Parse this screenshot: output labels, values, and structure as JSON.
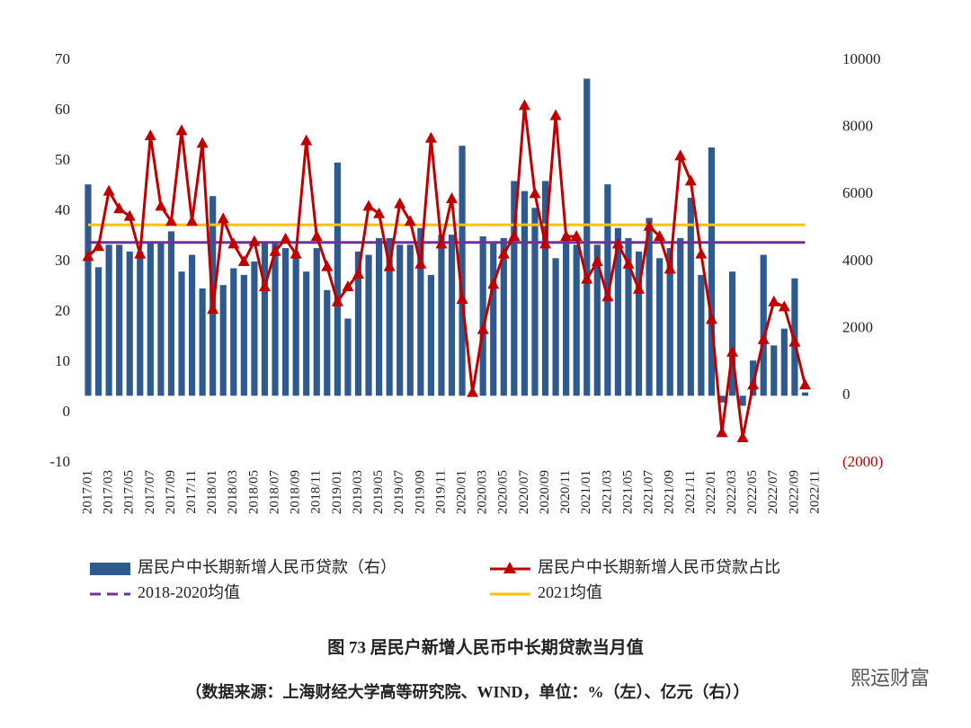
{
  "chart_data": {
    "type": "bar_line",
    "categories": [
      "2017/01",
      null,
      "2017/03",
      null,
      "2017/05",
      null,
      "2017/07",
      null,
      "2017/09",
      null,
      "2017/11",
      null,
      "2018/01",
      null,
      "2018/03",
      null,
      "2018/05",
      null,
      "2018/07",
      null,
      "2018/09",
      null,
      "2018/11",
      null,
      "2019/01",
      null,
      "2019/03",
      null,
      "2019/05",
      null,
      "2019/07",
      null,
      "2019/09",
      null,
      "2019/11",
      null,
      "2020/01",
      null,
      "2020/03",
      null,
      "2020/05",
      null,
      "2020/07",
      null,
      "2020/09",
      null,
      "2020/11",
      null,
      "2021/01",
      null,
      "2021/03",
      null,
      "2021/05",
      null,
      "2021/07",
      null,
      "2021/09",
      null,
      "2021/11",
      null,
      "2022/01",
      null,
      "2022/03",
      null,
      "2022/05",
      null,
      "2022/07",
      null,
      "2022/09",
      null,
      "2022/11"
    ],
    "series": [
      {
        "name": "居民户中长期新增人民币贷款（右）",
        "kind": "bar",
        "axis": "y2",
        "color": "#2f5a8f",
        "values": [
          6300,
          3830,
          4500,
          4500,
          4300,
          4300,
          4600,
          4600,
          4900,
          3700,
          4200,
          3200,
          5950,
          3300,
          3800,
          3600,
          4000,
          4600,
          4600,
          4400,
          4300,
          3700,
          4400,
          3150,
          6950,
          2300,
          4300,
          4200,
          4700,
          4700,
          4500,
          4500,
          5000,
          3600,
          4800,
          4800,
          7450,
          100,
          4750,
          4600,
          4700,
          6400,
          6100,
          5600,
          6400,
          4100,
          4800,
          4500,
          9450,
          4500,
          6300,
          5000,
          4700,
          4300,
          5300,
          4100,
          4400,
          4700,
          5900,
          3600,
          7400,
          -200,
          3700,
          -300,
          1050,
          4200,
          1500,
          2000,
          3500,
          100,
          null
        ]
      },
      {
        "name": "居民户中长期新增人民币贷款占比",
        "kind": "line",
        "axis": "y",
        "color": "#c00000",
        "values": [
          31,
          33,
          44,
          40.5,
          39,
          31.5,
          55,
          41,
          38,
          56,
          38,
          53.5,
          20.5,
          38.5,
          33.5,
          30,
          34,
          25,
          32,
          34.5,
          31.5,
          54,
          35,
          29,
          22,
          25,
          27.5,
          41,
          39.5,
          29,
          41.5,
          38,
          29.5,
          54.5,
          33.5,
          42.5,
          22.5,
          4,
          16.5,
          25.5,
          31.5,
          35,
          61,
          43.5,
          33.5,
          59,
          35,
          35,
          26.5,
          30,
          23,
          33.5,
          29.5,
          24.5,
          37,
          35,
          28.5,
          51,
          46,
          31.5,
          18.5,
          -4,
          12,
          -5,
          5.5,
          14.5,
          22,
          21,
          14,
          5.5,
          null
        ]
      }
    ],
    "reference_lines": [
      {
        "name": "2018-2020均值",
        "color": "#7030a0",
        "value": 33.8,
        "dashed": true
      },
      {
        "name": "2021均值",
        "color": "#ffc000",
        "value": 37.3,
        "dashed": false
      }
    ],
    "ylim": [
      -10,
      70
    ],
    "yticks": [
      -10,
      0,
      10,
      20,
      30,
      40,
      50,
      60,
      70
    ],
    "y2lim": [
      -2000,
      10000
    ],
    "y2ticks": [
      {
        "value": -2000,
        "label": "(2000)"
      },
      0,
      2000,
      4000,
      6000,
      8000,
      10000
    ],
    "figure_title": "图 73  居民户新增人民币中长期贷款当月值",
    "source": "（数据来源：上海财经大学高等研究院、WIND，单位：%（左）、亿元（右））",
    "watermark": "熙运财富"
  }
}
